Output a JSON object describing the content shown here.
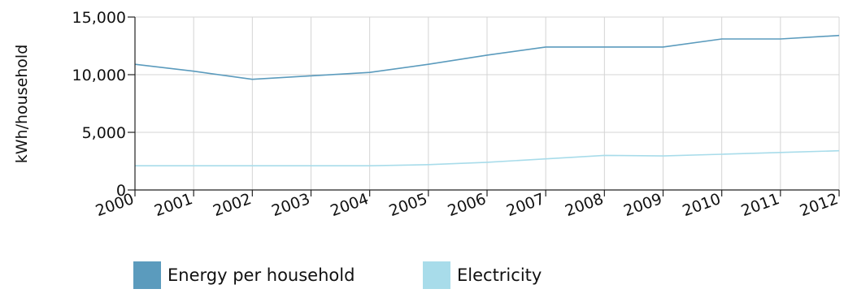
{
  "chart_data": {
    "type": "line",
    "title": "",
    "xlabel": "",
    "ylabel": "kWh/household",
    "x": [
      "2000",
      "2001",
      "2002",
      "2003",
      "2004",
      "2005",
      "2006",
      "2007",
      "2008",
      "2009",
      "2010",
      "2011",
      "2012"
    ],
    "ylim": [
      0,
      15000
    ],
    "yticks": [
      0,
      5000,
      10000,
      15000
    ],
    "ytick_labels": [
      "0",
      "5,000",
      "10,000",
      "15,000"
    ],
    "grid": true,
    "legend_position": "bottom",
    "series": [
      {
        "name": "Energy per household",
        "color": "#5b9bbd",
        "values": [
          10900,
          10300,
          9600,
          9900,
          10200,
          10900,
          11700,
          12400,
          12400,
          12400,
          13100,
          13100,
          13400
        ]
      },
      {
        "name": "Electricity",
        "color": "#a8dcea",
        "values": [
          2100,
          2100,
          2100,
          2100,
          2100,
          2200,
          2400,
          2700,
          3000,
          2950,
          3100,
          3250,
          3400
        ]
      }
    ]
  }
}
